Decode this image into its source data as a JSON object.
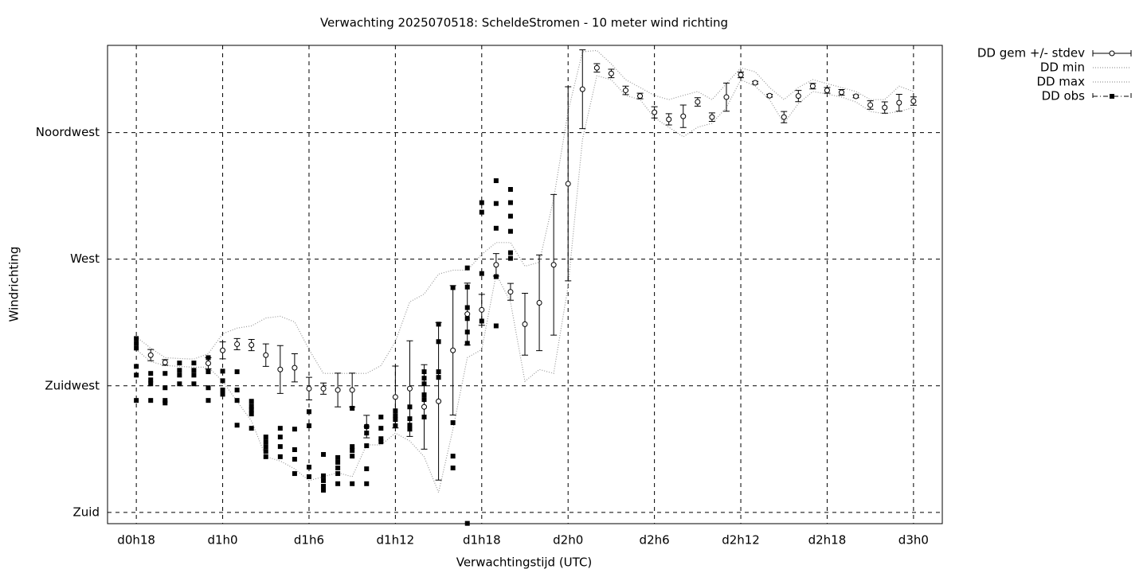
{
  "chart_data": {
    "type": "combo",
    "title": "Verwachting 2025070518: ScheldeStromen - 10 meter wind richting",
    "x_label": "Verwachtingstijd (UTC)",
    "y_label": "Windrichting",
    "xlim": [
      16,
      74
    ],
    "ylim": [
      176,
      346
    ],
    "xticks": [
      {
        "value": 18,
        "label": "d0h18"
      },
      {
        "value": 24,
        "label": "d1h0"
      },
      {
        "value": 30,
        "label": "d1h6"
      },
      {
        "value": 36,
        "label": "d1h12"
      },
      {
        "value": 42,
        "label": "d1h18"
      },
      {
        "value": 48,
        "label": "d2h0"
      },
      {
        "value": 54,
        "label": "d2h6"
      },
      {
        "value": 60,
        "label": "d2h12"
      },
      {
        "value": 66,
        "label": "d2h18"
      },
      {
        "value": 72,
        "label": "d3h0"
      }
    ],
    "yticks": [
      {
        "value": 180,
        "label": "Zuid"
      },
      {
        "value": 225,
        "label": "Zuidwest"
      },
      {
        "value": 270,
        "label": "West"
      },
      {
        "value": 315,
        "label": "Noordwest"
      }
    ],
    "grid": true,
    "legend": "right",
    "series": [
      {
        "name": "DD gem +/- stdev",
        "type": "errorbar",
        "color": "#000000",
        "x": [
          19,
          20,
          23,
          24,
          25,
          26,
          27,
          28,
          29,
          30,
          31,
          32,
          33,
          34,
          36,
          37,
          38,
          39,
          40,
          41,
          42,
          43,
          44,
          45,
          46,
          47,
          48,
          49,
          50,
          51,
          52,
          53,
          54,
          55,
          56,
          57,
          58,
          59,
          60,
          61,
          62,
          63,
          64,
          65,
          66,
          67,
          68,
          69,
          70,
          71,
          72
        ],
        "values": [
          235.9,
          233.3,
          233,
          237.6,
          239.8,
          239.5,
          235.9,
          230.8,
          231.4,
          224,
          224,
          223.5,
          223.5,
          210.5,
          221,
          224,
          217.5,
          219.5,
          237.6,
          250.5,
          252,
          268,
          258.4,
          246.9,
          254.5,
          268,
          296.8,
          330.4,
          338,
          336,
          330,
          328,
          322.2,
          319.7,
          320.8,
          325.9,
          320.5,
          327.6,
          335.5,
          332.7,
          328.1,
          320.5,
          328,
          331.5,
          330,
          329.3,
          327.9,
          324.8,
          323.9,
          325.6,
          326.2
        ],
        "errors": [
          2,
          1,
          2,
          3,
          2,
          2,
          4,
          8.5,
          5,
          4,
          2,
          6,
          6,
          4,
          11,
          17,
          15,
          28,
          23,
          11,
          5.5,
          4,
          3,
          11,
          17,
          25,
          34.5,
          14,
          1.5,
          1.5,
          1.5,
          1,
          2,
          2,
          4,
          1.5,
          1.5,
          5,
          1,
          0.5,
          0.5,
          2,
          2,
          1,
          1,
          1,
          0.5,
          1.5,
          2,
          3,
          1.5
        ]
      },
      {
        "name": "DD min",
        "type": "line",
        "style": "dotted",
        "color": "#999999",
        "x": [
          18,
          19,
          20,
          21,
          22,
          23,
          24,
          25,
          26,
          27,
          28,
          29,
          30,
          31,
          32,
          33,
          34,
          35,
          36,
          37,
          38,
          39,
          40,
          41,
          42,
          43,
          44,
          45,
          46,
          47,
          48,
          49,
          50,
          51,
          52,
          53,
          54,
          55,
          56,
          57,
          58,
          59,
          60,
          61,
          62,
          63,
          64,
          65,
          66,
          67,
          68,
          69,
          70,
          71,
          72
        ],
        "values": [
          237.9,
          233.6,
          232.2,
          231.9,
          231.6,
          231.6,
          226.6,
          219.5,
          212.5,
          199.8,
          198.3,
          195.5,
          191.3,
          192.7,
          194.1,
          192.7,
          204.0,
          204.0,
          208.2,
          205.4,
          199.8,
          187.1,
          209.6,
          235.0,
          237.9,
          264.7,
          254.8,
          226.6,
          230.8,
          229.4,
          260.4,
          312.6,
          335.2,
          333.8,
          328.2,
          326.7,
          320.3,
          316.9,
          313.5,
          316.9,
          318.3,
          323.9,
          333.8,
          331.5,
          326.7,
          318.3,
          325.3,
          329.6,
          328.7,
          327.6,
          325.9,
          322.5,
          321.7,
          322.5,
          323.9
        ]
      },
      {
        "name": "DD max",
        "type": "line",
        "style": "dotted",
        "color": "#999999",
        "x": [
          18,
          19,
          20,
          21,
          22,
          23,
          24,
          25,
          26,
          27,
          28,
          29,
          30,
          31,
          32,
          33,
          34,
          35,
          36,
          37,
          38,
          39,
          40,
          41,
          42,
          43,
          44,
          45,
          46,
          47,
          48,
          49,
          50,
          51,
          52,
          53,
          54,
          55,
          56,
          57,
          58,
          59,
          60,
          61,
          62,
          63,
          64,
          65,
          66,
          67,
          68,
          69,
          70,
          71,
          72
        ],
        "values": [
          242.4,
          238.4,
          235.0,
          234.7,
          234.5,
          236.4,
          243.5,
          245.5,
          246.3,
          249.1,
          249.7,
          247.7,
          237.9,
          229.4,
          229.4,
          229.4,
          229.4,
          232.2,
          240.7,
          254.8,
          257.6,
          264.7,
          266.1,
          266.1,
          271.7,
          275.9,
          275.9,
          267.5,
          268.9,
          291.5,
          322.5,
          343.7,
          344.2,
          339.4,
          333.8,
          331.0,
          328.2,
          326.7,
          328.2,
          329.6,
          326.7,
          332.4,
          338.0,
          336.6,
          331.0,
          326.7,
          331.0,
          333.8,
          332.4,
          331.0,
          329.6,
          326.7,
          326.7,
          331.5,
          329.6
        ]
      },
      {
        "name": "DD obs",
        "type": "scatter",
        "color": "#000000",
        "x": [
          18,
          18,
          18,
          18,
          18,
          18,
          19,
          19,
          19,
          19,
          20,
          20,
          20,
          20,
          21,
          21,
          21,
          21,
          22,
          22,
          22,
          22,
          23,
          23,
          23,
          23,
          24,
          24,
          24,
          24,
          25,
          25,
          25,
          25,
          26,
          26,
          26,
          26,
          26,
          27,
          27,
          27,
          27,
          27,
          28,
          28,
          28,
          28,
          29,
          29,
          29,
          29,
          30,
          30,
          30,
          30,
          31,
          31,
          31,
          31,
          31,
          32,
          32,
          32,
          32,
          32,
          33,
          33,
          33,
          33,
          33,
          34,
          34,
          34,
          34,
          34,
          35,
          35,
          35,
          35,
          36,
          36,
          36,
          36,
          37,
          37,
          37,
          37,
          38,
          38,
          38,
          38,
          38,
          38,
          39,
          39,
          39,
          39,
          40,
          40,
          40,
          40,
          41,
          41,
          41,
          41,
          41,
          41,
          41,
          42,
          42,
          42,
          42,
          43,
          43,
          43,
          43,
          43,
          44,
          44,
          44,
          44,
          44,
          44
        ],
        "values": [
          241.8,
          240.1,
          238.4,
          231.9,
          228.8,
          219.8,
          229.4,
          227.1,
          225.7,
          219.8,
          229.4,
          224.3,
          219.8,
          218.9,
          233.1,
          230.5,
          228.8,
          225.7,
          233.1,
          230.5,
          228.8,
          225.7,
          235.0,
          230.0,
          224.3,
          219.8,
          230.2,
          226.8,
          223.5,
          222.0,
          230.0,
          223.5,
          219.8,
          211.0,
          219.5,
          217.8,
          216.4,
          215.0,
          209.9,
          206.8,
          205.1,
          203.4,
          201.7,
          199.8,
          209.9,
          206.8,
          203.4,
          199.8,
          209.6,
          202.3,
          198.9,
          193.8,
          215.8,
          210.8,
          196.1,
          192.7,
          200.6,
          193.0,
          191.3,
          189.3,
          187.9,
          199.5,
          197.8,
          195.8,
          193.8,
          190.2,
          217.0,
          203.4,
          202.0,
          200.0,
          190.2,
          210.5,
          208.2,
          203.7,
          195.5,
          190.2,
          213.9,
          209.9,
          206.2,
          205.1,
          216.1,
          214.4,
          213.0,
          210.8,
          217.5,
          213.3,
          211.0,
          209.6,
          230.0,
          227.7,
          225.7,
          221.8,
          220.1,
          213.9,
          246.9,
          240.7,
          230.0,
          228.0,
          259.9,
          211.9,
          200.0,
          195.8,
          266.9,
          260.1,
          252.8,
          248.9,
          244.1,
          240.1,
          176.1,
          290.1,
          286.7,
          264.9,
          248.0,
          297.9,
          289.8,
          281.0,
          263.8,
          246.3,
          294.8,
          290.1,
          285.3,
          279.9,
          272.3,
          270.3
        ]
      }
    ]
  }
}
